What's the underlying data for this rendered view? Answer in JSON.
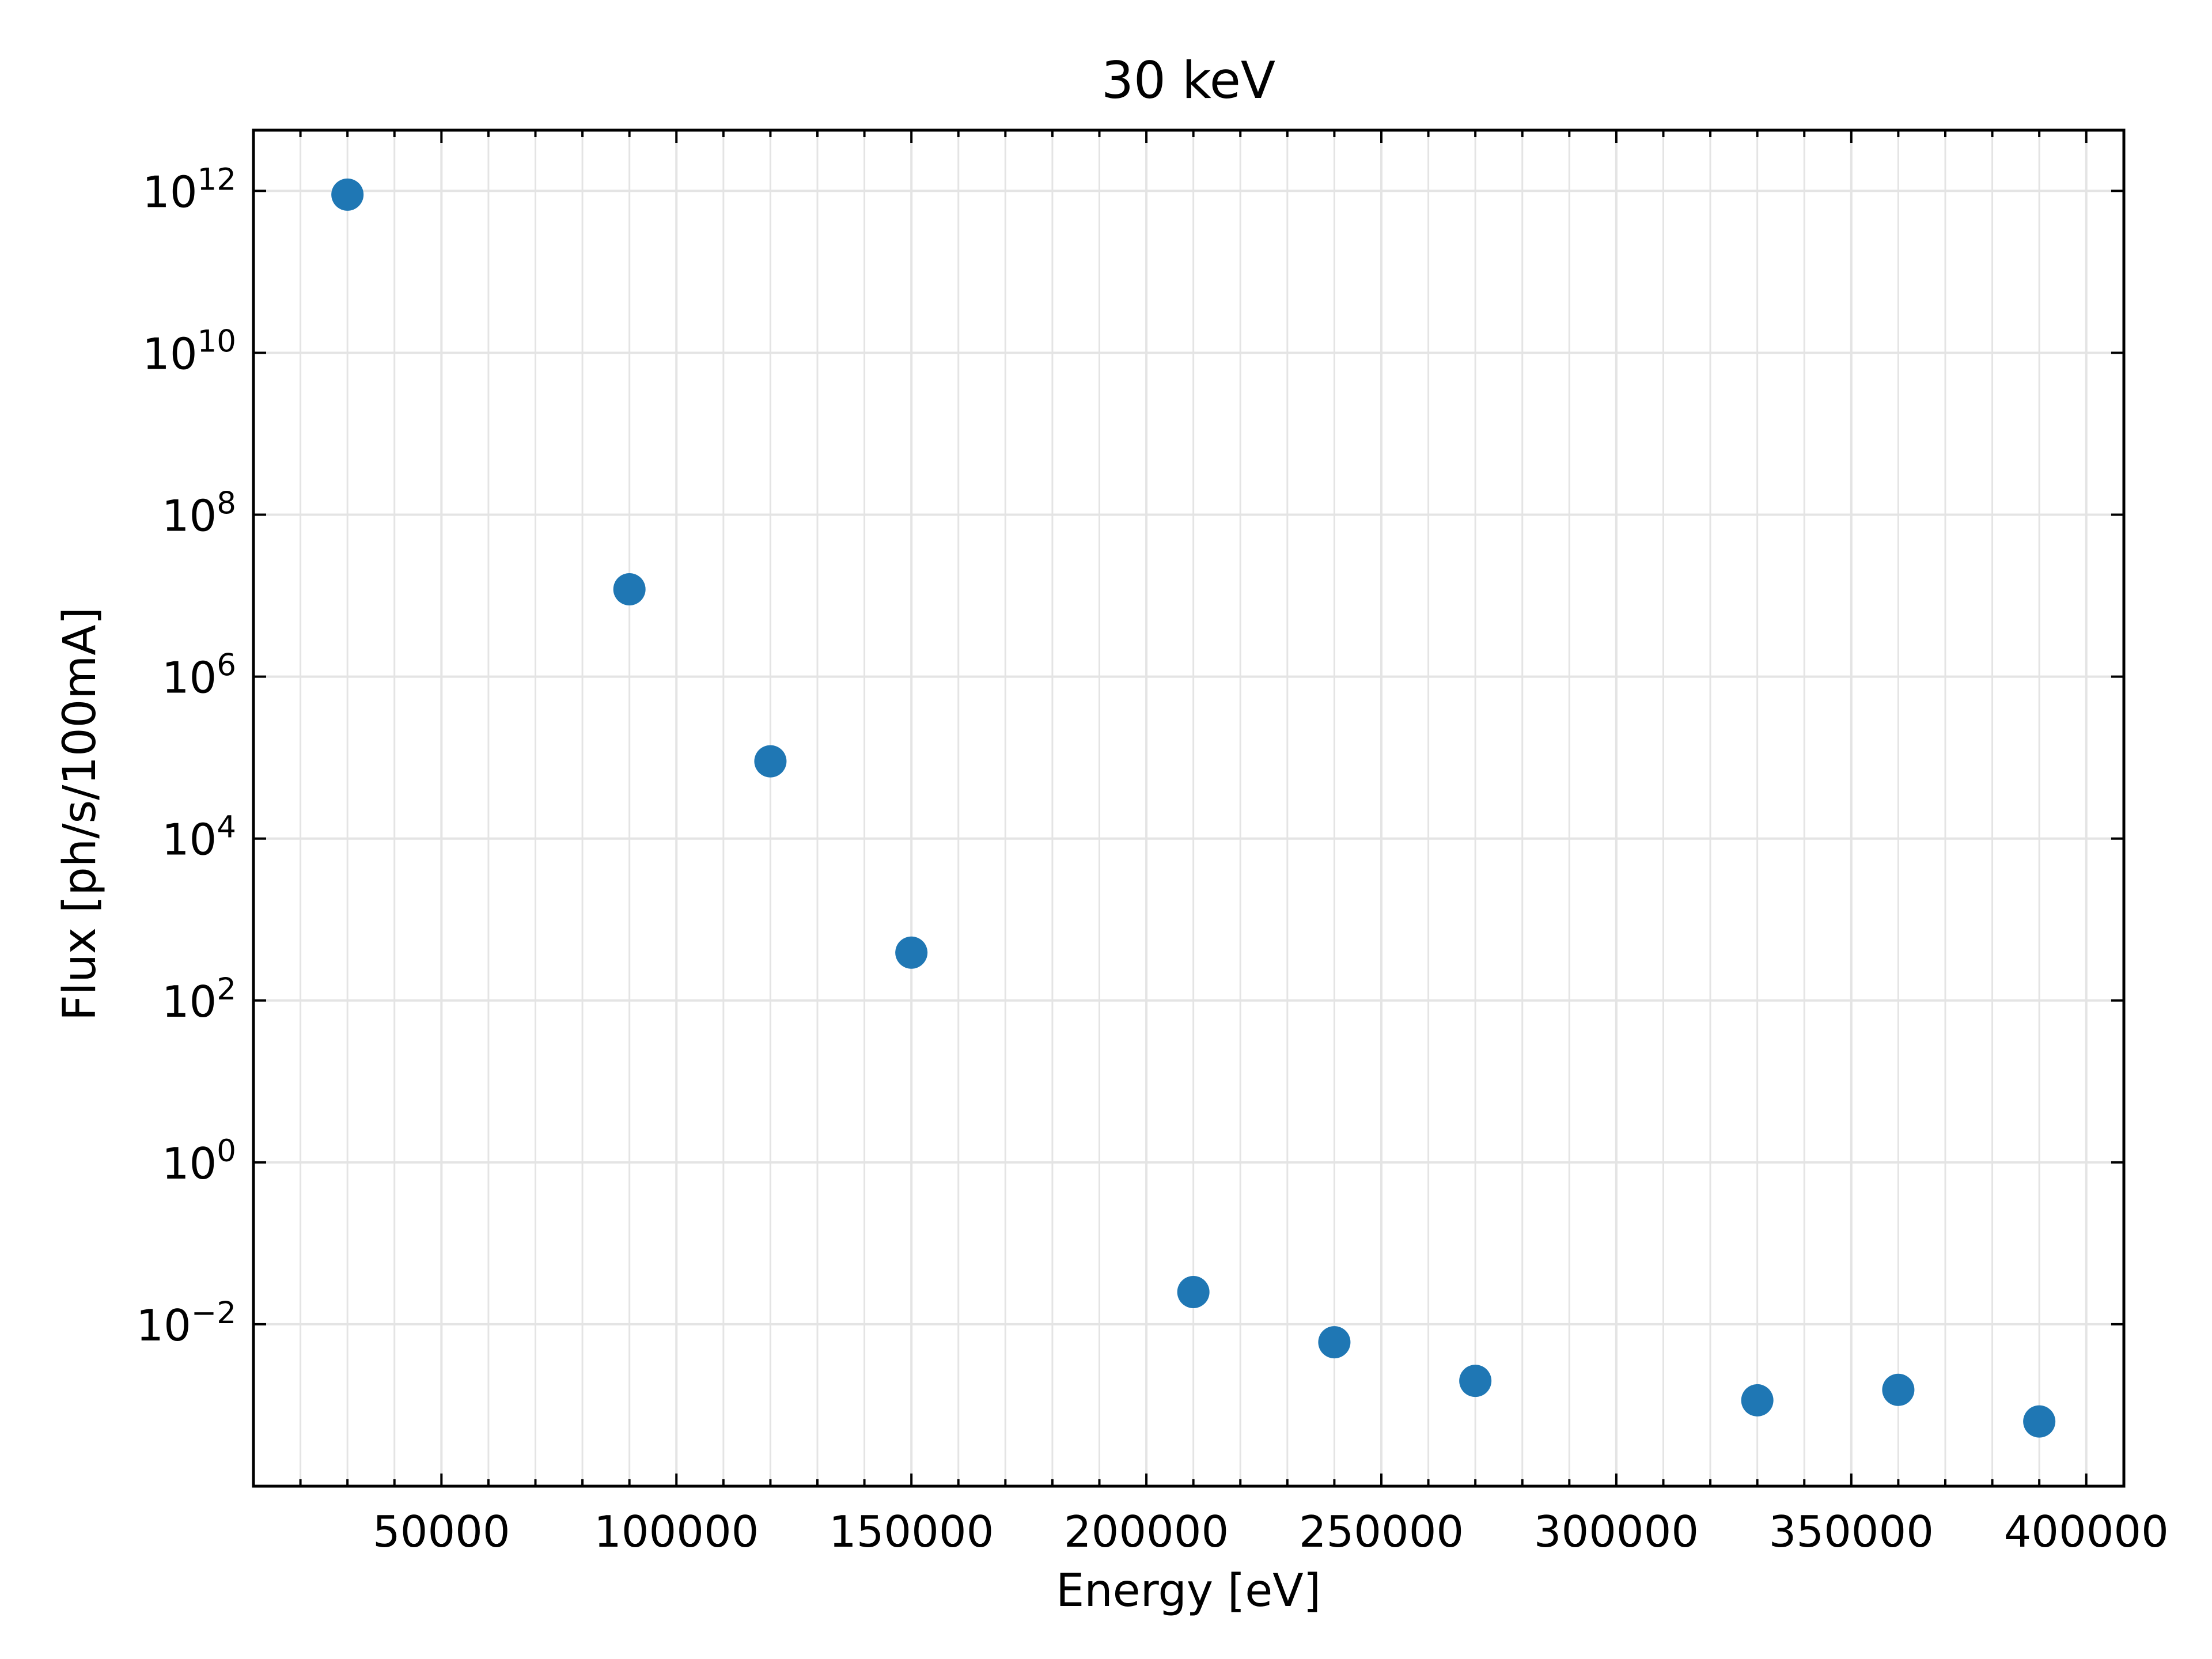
{
  "chart_data": {
    "type": "scatter",
    "title": "30 keV",
    "xlabel": "Energy [eV]",
    "ylabel": "Flux [ph/s/100mA]",
    "x_scale": "linear",
    "y_scale": "log",
    "xlim": [
      10000,
      408000
    ],
    "ylim_log10": [
      -4.0,
      12.75
    ],
    "x_ticks": [
      50000,
      100000,
      150000,
      200000,
      250000,
      300000,
      350000,
      400000
    ],
    "x_tick_labels": [
      "50000",
      "100000",
      "150000",
      "200000",
      "250000",
      "300000",
      "350000",
      "400000"
    ],
    "y_ticks_log10": [
      -2,
      0,
      2,
      4,
      6,
      8,
      10,
      12
    ],
    "y_tick_labels": [
      {
        "base": "10",
        "exp": "−2"
      },
      {
        "base": "10",
        "exp": "0"
      },
      {
        "base": "10",
        "exp": "2"
      },
      {
        "base": "10",
        "exp": "4"
      },
      {
        "base": "10",
        "exp": "6"
      },
      {
        "base": "10",
        "exp": "8"
      },
      {
        "base": "10",
        "exp": "10"
      },
      {
        "base": "10",
        "exp": "12"
      }
    ],
    "grid": true,
    "marker_color": "#1f77b4",
    "points": [
      {
        "x": 30000,
        "y": 900000000000.0
      },
      {
        "x": 90000,
        "y": 12000000.0
      },
      {
        "x": 120000,
        "y": 90000.0
      },
      {
        "x": 150000,
        "y": 390.0
      },
      {
        "x": 210000,
        "y": 0.025
      },
      {
        "x": 240000,
        "y": 0.006
      },
      {
        "x": 270000,
        "y": 0.002
      },
      {
        "x": 330000,
        "y": 0.00115
      },
      {
        "x": 360000,
        "y": 0.00155
      },
      {
        "x": 390000,
        "y": 0.00063
      }
    ]
  }
}
